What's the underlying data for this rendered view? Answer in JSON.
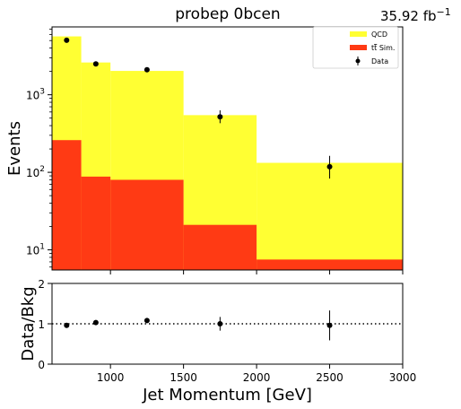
{
  "figure": {
    "title": "probep 0bcen",
    "lumi_text": "35.92 fb",
    "lumi_exponent": "−1"
  },
  "chart_data": [
    {
      "type": "bar",
      "subtype": "stacked-histogram-with-error-points",
      "ylabel": "Events",
      "yscale": "log",
      "ylim": [
        5.5,
        7500
      ],
      "xlim": [
        600,
        3000
      ],
      "yticks": [
        {
          "value": 10,
          "label": "10",
          "exp": "1"
        },
        {
          "value": 100,
          "label": "10",
          "exp": "2"
        },
        {
          "value": 1000,
          "label": "10",
          "exp": "3"
        }
      ],
      "bin_edges": [
        600,
        800,
        1000,
        1500,
        2000,
        3000
      ],
      "series": [
        {
          "name": "tt̄ Sim.",
          "label_main": "t",
          "label_bar": "t",
          "label_rest": " Sim.",
          "color": "#ff3a14",
          "values": [
            260,
            88,
            80,
            21,
            7.5
          ]
        },
        {
          "name": "QCD",
          "label_main": "QCD",
          "color": "#ffff33",
          "values": [
            5400,
            2520,
            1950,
            525,
            125
          ]
        }
      ],
      "data_points": {
        "name": "Data",
        "x": [
          700,
          900,
          1250,
          1750,
          2500
        ],
        "y": [
          5050,
          2500,
          2100,
          520,
          118
        ],
        "yerr_low": [
          150,
          100,
          90,
          90,
          35
        ],
        "yerr_high": [
          150,
          100,
          90,
          110,
          45
        ]
      },
      "legend": {
        "position": "top-right",
        "entries": [
          "QCD",
          "tt̄ Sim.",
          "Data"
        ]
      }
    },
    {
      "type": "scatter",
      "xlabel": "Jet Momentum [GeV]",
      "ylabel": "Data/Bkg",
      "xlim": [
        600,
        3000
      ],
      "ylim": [
        0,
        2
      ],
      "xticks": [
        1000,
        1500,
        2000,
        2500,
        3000
      ],
      "yticks": [
        0,
        1,
        2
      ],
      "reference_line": 1,
      "x": [
        700,
        900,
        1250,
        1750,
        2500
      ],
      "y": [
        0.96,
        1.03,
        1.08,
        1.0,
        0.96
      ],
      "yerr": [
        0.04,
        0.05,
        0.06,
        0.17,
        0.37
      ]
    }
  ]
}
